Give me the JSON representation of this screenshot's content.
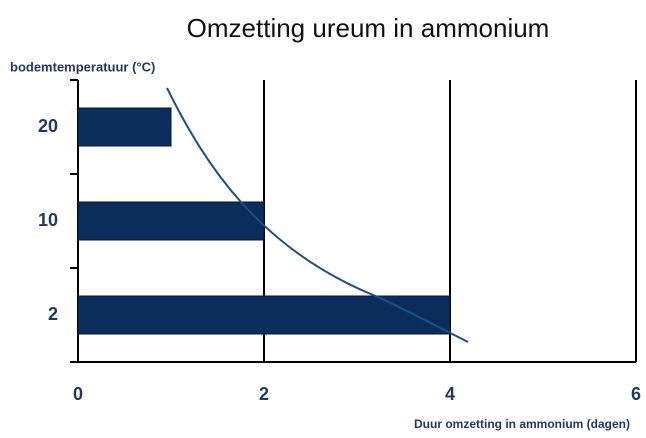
{
  "chart_data": {
    "type": "bar",
    "orientation": "horizontal",
    "title": "Omzetting ureum in ammonium",
    "y_label": "bodemtemperatuur (°C)",
    "x_label": "Duur omzetting in ammonium (dagen)",
    "categories": [
      "20",
      "10",
      "2"
    ],
    "values": [
      1,
      2,
      4
    ],
    "color": "#0b2d5b",
    "xlim": [
      0,
      6
    ],
    "xticks": [
      0,
      2,
      4,
      6
    ],
    "grid": true
  }
}
